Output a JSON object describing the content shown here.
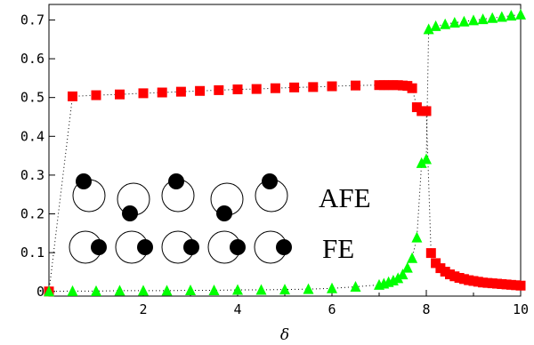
{
  "chart_data": {
    "type": "scatter",
    "xlabel": "δ",
    "ylabel": "",
    "xlim": [
      0,
      10
    ],
    "ylim": [
      -0.012,
      0.74
    ],
    "x_ticks": [
      2,
      4,
      6,
      8,
      10
    ],
    "y_ticks": [
      0,
      0.1,
      0.2,
      0.3,
      0.4,
      0.5,
      0.6,
      0.7
    ],
    "x_tick_labels": [
      "2",
      "4",
      "6",
      "8",
      "10"
    ],
    "y_tick_labels": [
      "0",
      "0.1",
      "0.2",
      "0.3",
      "0.4",
      "0.5",
      "0.6",
      "0.7"
    ],
    "grid": false,
    "series": [
      {
        "marker": "square",
        "color": "#ff0000",
        "x": [
          0.0,
          0.5,
          1.0,
          1.5,
          2.0,
          2.4,
          2.8,
          3.2,
          3.6,
          4.0,
          4.4,
          4.8,
          5.2,
          5.6,
          6.0,
          6.5,
          7.0,
          7.1,
          7.2,
          7.3,
          7.4,
          7.5,
          7.6,
          7.7,
          7.8,
          7.9,
          8.0,
          8.1,
          8.2,
          8.3,
          8.4,
          8.5,
          8.6,
          8.7,
          8.8,
          8.9,
          9.0,
          9.1,
          9.2,
          9.3,
          9.4,
          9.5,
          9.6,
          9.7,
          9.8,
          9.9,
          10.0
        ],
        "y": [
          0.0,
          0.503,
          0.506,
          0.508,
          0.511,
          0.513,
          0.515,
          0.517,
          0.519,
          0.521,
          0.522,
          0.524,
          0.526,
          0.527,
          0.529,
          0.531,
          0.532,
          0.532,
          0.532,
          0.532,
          0.532,
          0.531,
          0.53,
          0.524,
          0.475,
          0.465,
          0.465,
          0.099,
          0.073,
          0.06,
          0.051,
          0.044,
          0.039,
          0.035,
          0.032,
          0.029,
          0.027,
          0.025,
          0.023,
          0.022,
          0.021,
          0.02,
          0.019,
          0.018,
          0.017,
          0.016,
          0.015
        ]
      },
      {
        "marker": "triangle",
        "color": "#00ff00",
        "x": [
          0.0,
          0.5,
          1.0,
          1.5,
          2.0,
          2.5,
          3.0,
          3.5,
          4.0,
          4.5,
          5.0,
          5.5,
          6.0,
          6.5,
          7.0,
          7.1,
          7.2,
          7.3,
          7.4,
          7.5,
          7.6,
          7.7,
          7.8,
          7.9,
          8.0,
          8.05,
          8.2,
          8.4,
          8.6,
          8.8,
          9.0,
          9.2,
          9.4,
          9.6,
          9.8,
          10.0
        ],
        "y": [
          0.0,
          0.001,
          0.001,
          0.002,
          0.002,
          0.002,
          0.003,
          0.003,
          0.004,
          0.004,
          0.005,
          0.006,
          0.008,
          0.012,
          0.017,
          0.02,
          0.024,
          0.028,
          0.034,
          0.044,
          0.061,
          0.086,
          0.139,
          0.331,
          0.341,
          0.676,
          0.684,
          0.689,
          0.693,
          0.696,
          0.699,
          0.702,
          0.705,
          0.708,
          0.711,
          0.714
        ]
      }
    ],
    "annotations": [
      "AFE",
      "FE"
    ]
  }
}
